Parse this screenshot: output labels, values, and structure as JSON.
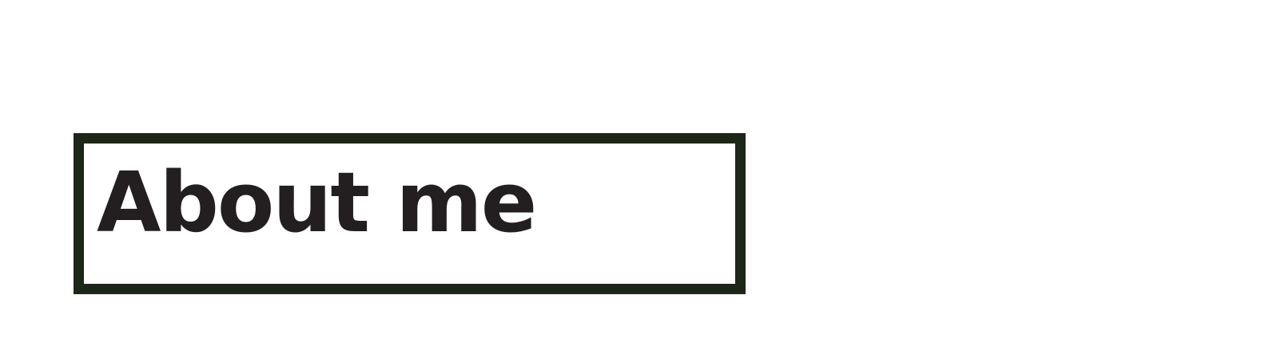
{
  "section": {
    "title": "About me"
  },
  "colors": {
    "border": "#1c2619",
    "text": "#231f20",
    "background": "#ffffff"
  }
}
